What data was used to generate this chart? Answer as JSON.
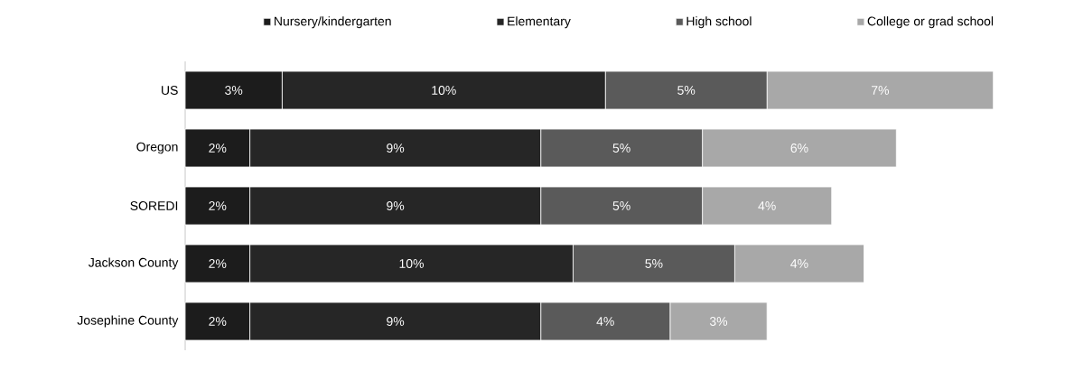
{
  "chart_data": {
    "type": "bar",
    "orientation": "horizontal",
    "stacked": true,
    "legend": "top",
    "categories": [
      "US",
      "Oregon",
      "SOREDI",
      "Jackson County",
      "Josephine County"
    ],
    "series": [
      {
        "name": "Nursery/kindergarten",
        "color": "#1c1c1c",
        "values": [
          3,
          2,
          2,
          2,
          2
        ],
        "value_labels": [
          "3%",
          "2%",
          "2%",
          "2%",
          "2%"
        ]
      },
      {
        "name": "Elementary",
        "color": "#262626",
        "values": [
          10,
          9,
          9,
          10,
          9
        ],
        "value_labels": [
          "10%",
          "9%",
          "9%",
          "10%",
          "9%"
        ]
      },
      {
        "name": "High school",
        "color": "#5a5a5a",
        "values": [
          5,
          5,
          5,
          5,
          4
        ],
        "value_labels": [
          "5%",
          "5%",
          "5%",
          "5%",
          "4%"
        ]
      },
      {
        "name": "College or grad school",
        "color": "#a8a8a8",
        "values": [
          7,
          6,
          4,
          4,
          3
        ],
        "value_labels": [
          "7%",
          "6%",
          "4%",
          "4%",
          "3%"
        ]
      }
    ]
  }
}
